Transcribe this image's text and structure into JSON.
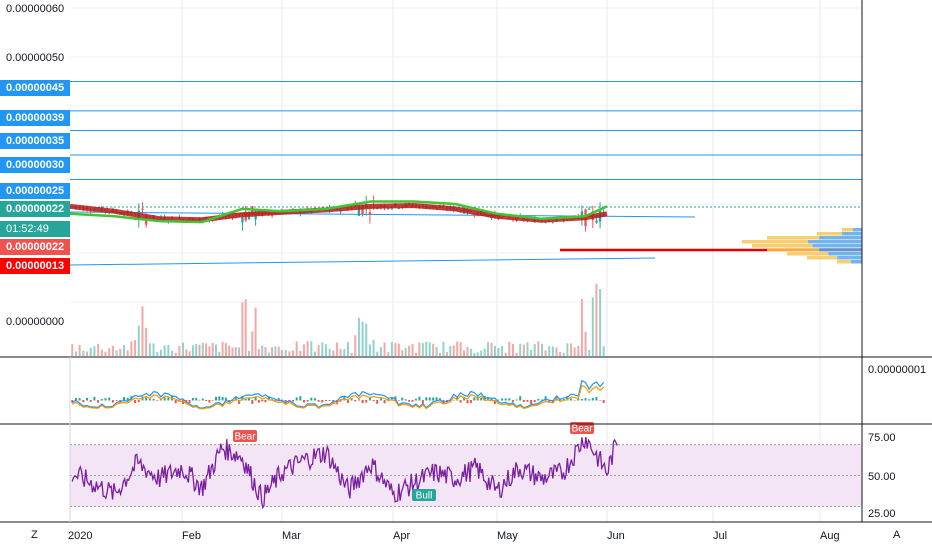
{
  "chart_data": {
    "type": "line",
    "price_axis": {
      "ticks": [
        "0.00000060",
        "0.00000050",
        "0.00000000"
      ],
      "ylim": [
        1e-07,
        6.2e-07
      ]
    },
    "horizontal_levels": [
      {
        "label": "0.00000045",
        "value": 4.5e-07,
        "color": "#2196f3"
      },
      {
        "label": "0.00000039",
        "value": 3.9e-07,
        "color": "#2196f3"
      },
      {
        "label": "0.00000035",
        "value": 3.5e-07,
        "color": "#2196f3"
      },
      {
        "label": "0.00000030",
        "value": 3e-07,
        "color": "#2196f3"
      },
      {
        "label": "0.00000025",
        "value": 2.5e-07,
        "color": "#2196f3"
      }
    ],
    "price_tags": [
      {
        "label": "0.00000022",
        "color": "#26a69a"
      },
      {
        "label": "01:52:49",
        "color": "#26a69a"
      },
      {
        "label": "0.00000022",
        "color": "#ef5350"
      },
      {
        "label": "0.00000013",
        "color": "#ff0000"
      }
    ],
    "x_axis_labels": [
      "2020",
      "Feb",
      "Mar",
      "Apr",
      "May",
      "Jun",
      "Jul",
      "Aug"
    ],
    "ema_series": {
      "x_months": [
        0.0,
        0.4,
        0.8,
        1.2,
        1.6,
        2.0,
        2.4,
        2.8,
        3.2,
        3.6,
        4.0,
        4.4,
        4.8,
        5.0
      ],
      "red_ema": [
        1.95e-07,
        1.85e-07,
        1.7e-07,
        1.68e-07,
        1.78e-07,
        1.83e-07,
        1.88e-07,
        1.95e-07,
        1.97e-07,
        1.9e-07,
        1.75e-07,
        1.67e-07,
        1.72e-07,
        1.8e-07
      ],
      "green_ema": [
        1.8e-07,
        1.75e-07,
        1.65e-07,
        1.63e-07,
        1.9e-07,
        1.85e-07,
        1.9e-07,
        2.05e-07,
        2.05e-07,
        2e-07,
        1.8e-07,
        1.7e-07,
        1.75e-07,
        1.95e-07
      ]
    },
    "macd_pane": {
      "tick": "0.00000001"
    },
    "rsi_pane": {
      "ticks": [
        "75.00",
        "50.00",
        "25.00"
      ],
      "ylim": [
        20,
        82
      ],
      "band": [
        30,
        70
      ],
      "x_months": [
        0.0,
        0.2,
        0.4,
        0.6,
        0.8,
        1.0,
        1.2,
        1.4,
        1.6,
        1.8,
        2.0,
        2.2,
        2.4,
        2.6,
        2.8,
        3.0,
        3.2,
        3.4,
        3.6,
        3.8,
        4.0,
        4.2,
        4.4,
        4.6,
        4.8,
        5.0,
        5.1
      ],
      "values": [
        52,
        45,
        38,
        58,
        48,
        55,
        42,
        68,
        62,
        35,
        52,
        60,
        65,
        40,
        58,
        38,
        45,
        52,
        48,
        55,
        40,
        55,
        48,
        52,
        75,
        52,
        74
      ],
      "markers": [
        {
          "label": "Bear",
          "type": "bear"
        },
        {
          "label": "Bull",
          "type": "bull"
        },
        {
          "label": "Bear",
          "type": "bear"
        }
      ]
    }
  },
  "corners": {
    "left": "Z",
    "right": "A"
  }
}
